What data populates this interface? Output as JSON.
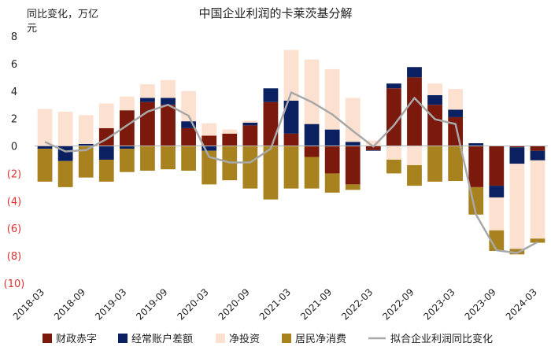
{
  "chart_data": {
    "type": "bar",
    "stacked": true,
    "title": "中国企业利润的卡莱茨基分解",
    "ylabel_line1": "同比变化，万亿",
    "ylabel_line2": "元",
    "ylim": [
      -10,
      8
    ],
    "yticks": [
      {
        "value": 8,
        "label": "8",
        "color": "#222222"
      },
      {
        "value": 6,
        "label": "6",
        "color": "#222222"
      },
      {
        "value": 4,
        "label": "4",
        "color": "#222222"
      },
      {
        "value": 2,
        "label": "2",
        "color": "#222222"
      },
      {
        "value": 0,
        "label": "0",
        "color": "#222222"
      },
      {
        "value": -2,
        "label": "(2)",
        "color": "#e03030"
      },
      {
        "value": -4,
        "label": "(4)",
        "color": "#e03030"
      },
      {
        "value": -6,
        "label": "(6)",
        "color": "#e03030"
      },
      {
        "value": -8,
        "label": "(8)",
        "color": "#e03030"
      },
      {
        "value": -10,
        "label": "(10)",
        "color": "#e03030"
      }
    ],
    "categories": [
      "2018-03",
      "2018-06",
      "2018-09",
      "2018-12",
      "2019-03",
      "2019-06",
      "2019-09",
      "2019-12",
      "2020-03",
      "2020-06",
      "2020-09",
      "2020-12",
      "2021-03",
      "2021-06",
      "2021-09",
      "2021-12",
      "2022-03",
      "2022-06",
      "2022-09",
      "2022-12",
      "2023-03",
      "2023-06",
      "2023-09",
      "2023-12",
      "2024-03"
    ],
    "xtick_labels": [
      "2018-03",
      "2018-09",
      "2019-03",
      "2019-09",
      "2020-03",
      "2020-09",
      "2021-03",
      "2021-09",
      "2022-03",
      "2022-09",
      "2023-03",
      "2023-09",
      "2024-03"
    ],
    "series": [
      {
        "name": "财政赤字",
        "color": "#7b1a0c",
        "values": [
          0.0,
          0.0,
          0.0,
          1.3,
          2.6,
          3.2,
          3.0,
          1.3,
          0.75,
          0.9,
          1.5,
          3.2,
          0.9,
          -0.8,
          -2.0,
          -2.8,
          -0.3,
          4.2,
          5.0,
          3.0,
          2.1,
          -3.0,
          -2.9,
          -0.1,
          -0.35
        ]
      },
      {
        "name": "经常账户差额",
        "color": "#0b2060",
        "values": [
          -0.2,
          -1.1,
          0.15,
          -1.0,
          -0.2,
          0.3,
          0.5,
          0.5,
          -0.35,
          0.0,
          0.2,
          1.0,
          2.4,
          1.6,
          1.2,
          0.3,
          -0.05,
          0.35,
          0.75,
          0.7,
          0.55,
          0.2,
          -0.85,
          -1.2,
          -0.7
        ]
      },
      {
        "name": "净投资",
        "color": "#fde1d0",
        "values": [
          2.7,
          2.5,
          2.1,
          1.8,
          1.0,
          1.0,
          1.3,
          2.2,
          0.9,
          0.3,
          0.15,
          0.0,
          3.7,
          4.7,
          4.4,
          3.2,
          0.4,
          -1.0,
          -1.4,
          0.85,
          1.5,
          0.0,
          -2.4,
          -6.2,
          -5.7
        ]
      },
      {
        "name": "居民净消费",
        "color": "#a8821f",
        "values": [
          -2.4,
          -1.9,
          -2.3,
          -1.6,
          -1.7,
          -1.8,
          -1.7,
          -1.8,
          -2.45,
          -2.5,
          -3.1,
          -3.9,
          -3.1,
          -2.3,
          -1.4,
          -0.4,
          0.0,
          -1.0,
          -1.5,
          -2.6,
          -2.55,
          -2.0,
          -1.5,
          -0.4,
          -0.3
        ]
      }
    ],
    "line": {
      "name": "拟合企业利润同比变化",
      "color": "#a8a8a8",
      "values": [
        0.3,
        -0.4,
        -0.3,
        0.5,
        1.5,
        2.5,
        3.0,
        2.2,
        -0.8,
        -1.2,
        -1.2,
        -0.2,
        3.9,
        3.2,
        2.3,
        1.1,
        -0.05,
        1.5,
        3.5,
        1.95,
        1.6,
        -5.0,
        -7.6,
        -7.8,
        -7.0
      ]
    }
  }
}
